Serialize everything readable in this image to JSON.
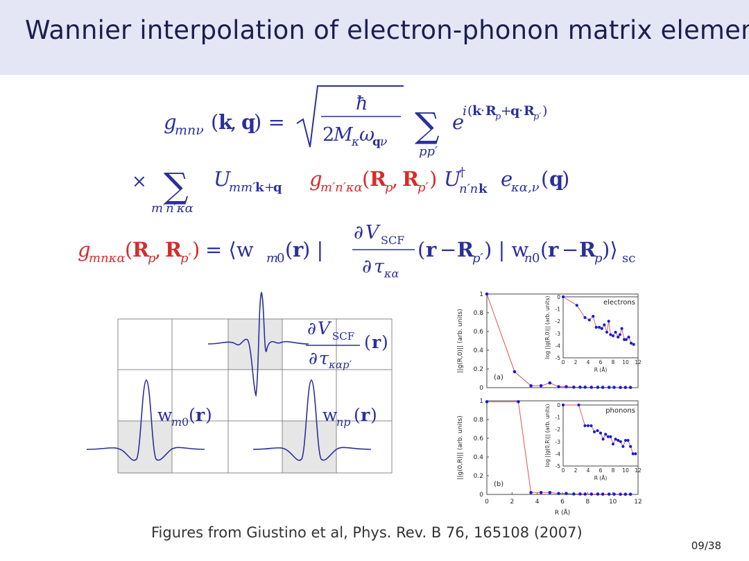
{
  "slide": {
    "title": "Wannier interpolation of electron-phonon matrix elements",
    "caption": "Figures from Giustino et al, Phys. Rev. B 76, 165108 (2007)",
    "page_number": "09/38"
  },
  "equations": {
    "eq1_lhs": "g_{mnν}(k, q) =",
    "eq1_rhs": "√(ħ / 2M_κ ω_{qν}) Σ_{pp'} e^{i(k·R_p + q·R_{p'})}",
    "eq2": "× Σ_{m'n'κα} U_{mm'k+q} g_{m'n'κα}(R_p, R_{p'}) U†_{n'nk} e_{κα,ν}(q)",
    "eq3": "g_{mnκα}(R_p, R_{p'}) = ⟨w_{m0}(r) | ∂V_SCF/∂τ_{κα} (r − R_{p'}) | w_{n0}(r − R_p)⟩_sc"
  },
  "left_figure": {
    "labels": [
      "w_{m0}(r)",
      "w_{np}(r)",
      "∂V_SCF/∂τ_{καp'}(r)"
    ]
  },
  "chart_data": [
    {
      "type": "line",
      "panel": "(a)",
      "xlabel": "",
      "ylabel": "||g(R,0)|| (arb. units)",
      "xlim": [
        0,
        12
      ],
      "ylim": [
        0,
        1
      ],
      "x_ticks": [],
      "y_ticks": [
        "0",
        "0.2",
        "0.4",
        "0.6",
        "0.8",
        "1"
      ],
      "series": [
        {
          "name": "",
          "x": [
            0,
            2.2,
            3.5,
            4.3,
            5.0,
            5.7,
            6.3,
            6.9,
            7.4,
            7.8,
            8.3,
            8.8,
            9.2,
            9.7,
            10.1,
            10.6,
            11.0,
            11.4
          ],
          "y": [
            1.0,
            0.17,
            0.02,
            0.02,
            0.05,
            0.01,
            0.01,
            0.005,
            0.005,
            0.005,
            0.004,
            0.004,
            0.003,
            0.003,
            0.003,
            0.002,
            0.002,
            0.002
          ]
        }
      ],
      "inset": {
        "label": "electrons",
        "xlabel": "R (Å)",
        "ylabel": "log ||g(R,0)|| (arb. units)",
        "xlim": [
          0,
          12
        ],
        "ylim": [
          -5,
          0
        ],
        "x_ticks": [
          "0",
          "2",
          "4",
          "6",
          "8",
          "10",
          "12"
        ],
        "y_ticks": [
          "0",
          "-1",
          "-2",
          "-3",
          "-4",
          "-5"
        ],
        "x": [
          0,
          2.2,
          3.5,
          4.2,
          4.8,
          5.3,
          5.8,
          6.2,
          6.6,
          7.0,
          7.3,
          7.6,
          8.0,
          8.4,
          8.8,
          9.1,
          9.4,
          9.8,
          10.1,
          10.5,
          10.9,
          11.3
        ],
        "y": [
          0,
          -0.7,
          -1.7,
          -1.9,
          -1.6,
          -2.5,
          -2.5,
          -2.6,
          -2.3,
          -2.9,
          -2.0,
          -3.1,
          -3.2,
          -2.9,
          -3.3,
          -3.1,
          -2.6,
          -3.5,
          -3.5,
          -3.3,
          -3.8,
          -3.9
        ]
      }
    },
    {
      "type": "line",
      "panel": "(b)",
      "xlabel": "R (Å)",
      "ylabel": "||g(0,R)|| (arb. units)",
      "xlim": [
        0,
        12
      ],
      "ylim": [
        0,
        1
      ],
      "x_ticks": [
        "0",
        "2",
        "4",
        "6",
        "8",
        "10",
        "12"
      ],
      "y_ticks": [
        "0",
        "0.2",
        "0.4",
        "0.6",
        "0.8",
        "1"
      ],
      "series": [
        {
          "name": "",
          "x": [
            0,
            2.5,
            3.5,
            4.3,
            5.0,
            5.7,
            6.3,
            6.9,
            7.4,
            7.8,
            8.3,
            8.8,
            9.2,
            9.7,
            10.1,
            10.6,
            11.0,
            11.4
          ],
          "y": [
            0.99,
            0.99,
            0.02,
            0.02,
            0.02,
            0.01,
            0.01,
            0.005,
            0.005,
            0.004,
            0.004,
            0.004,
            0.003,
            0.003,
            0.003,
            0.002,
            0.002,
            0.002
          ]
        }
      ],
      "inset": {
        "label": "phonons",
        "xlabel": "R (Å)",
        "ylabel": "log ||g(0,R)|| (arb. units)",
        "xlim": [
          0,
          12
        ],
        "ylim": [
          -5,
          0
        ],
        "x_ticks": [
          "0",
          "2",
          "4",
          "6",
          "8",
          "10",
          "12"
        ],
        "y_ticks": [
          "0",
          "-1",
          "-2",
          "-3",
          "-4",
          "-5"
        ],
        "x": [
          0,
          2.5,
          3.5,
          4.0,
          4.5,
          5.0,
          5.5,
          6.0,
          6.4,
          6.8,
          7.2,
          7.6,
          8.0,
          8.4,
          8.8,
          9.2,
          9.6,
          10.0,
          10.4,
          10.8,
          11.2,
          11.6
        ],
        "y": [
          0,
          0,
          -1.7,
          -1.7,
          -1.7,
          -2.2,
          -2.1,
          -2.3,
          -2.8,
          -2.4,
          -2.6,
          -2.6,
          -3.2,
          -2.8,
          -2.9,
          -3.0,
          -3.4,
          -2.9,
          -2.9,
          -3.4,
          -4.0,
          -4.0
        ]
      }
    }
  ]
}
